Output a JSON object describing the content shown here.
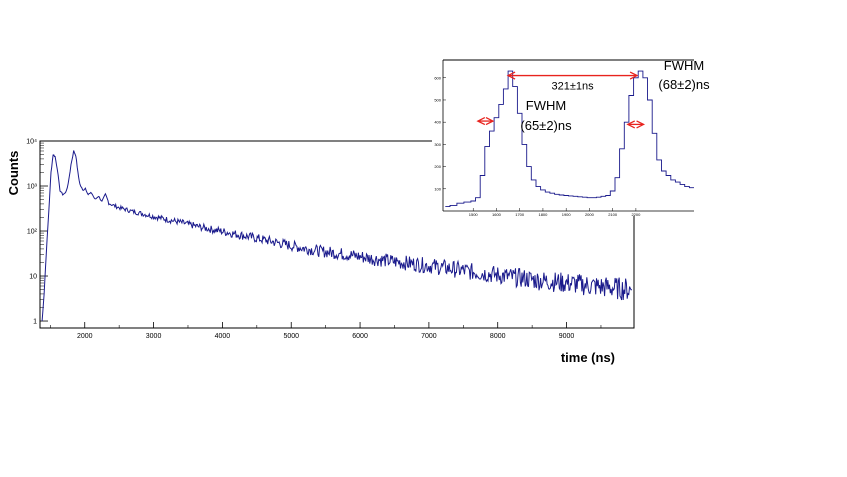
{
  "chart_data": [
    {
      "type": "line",
      "xlabel": "time (ns)",
      "ylabel": "Counts",
      "xlim": [
        1350,
        9980
      ],
      "ylim": [
        0.7,
        10000
      ],
      "yscale": "log",
      "xticks": [
        "2000",
        "3000",
        "4000",
        "5000",
        "6000",
        "7000",
        "8000",
        "9000"
      ],
      "xtick_values": [
        2000,
        3000,
        4000,
        5000,
        6000,
        7000,
        8000,
        9000
      ],
      "yticks": [
        "1",
        "10",
        "10²",
        "10³",
        "10⁴"
      ],
      "ytick_values": [
        1,
        10,
        100,
        1000,
        10000
      ],
      "grid": false,
      "color": "#1a1a8c",
      "series": [
        {
          "x": [
            1380,
            1410,
            1440,
            1480,
            1510,
            1540,
            1570,
            1600,
            1640,
            1680,
            1720,
            1760,
            1800,
            1840,
            1870,
            1900,
            1930,
            1970,
            2010,
            2050,
            2100,
            2150,
            2200,
            2250,
            2300,
            2350,
            2400,
            2500,
            2600,
            2700,
            2800,
            2900,
            3000,
            3200,
            3400,
            3600,
            3800,
            4000,
            4200,
            4400,
            4600,
            4800,
            5000,
            5200,
            5400,
            5600,
            5800,
            6000,
            6200,
            6400,
            6600,
            6800,
            7000,
            7200,
            7400,
            7600,
            7800,
            8000,
            8200,
            8400,
            8600,
            8800,
            9000,
            9200,
            9400,
            9600,
            9800,
            9950
          ],
          "y": [
            1,
            4,
            30,
            300,
            2000,
            5000,
            4500,
            2500,
            800,
            650,
            700,
            1100,
            3000,
            6000,
            4800,
            2000,
            1100,
            800,
            900,
            650,
            700,
            500,
            600,
            450,
            650,
            420,
            380,
            330,
            300,
            270,
            250,
            230,
            210,
            180,
            155,
            130,
            112,
            98,
            85,
            74,
            64,
            55,
            47,
            41,
            36,
            33,
            30,
            27,
            24,
            22,
            20,
            18.5,
            17,
            15.5,
            14,
            12.5,
            11.5,
            10.5,
            9.5,
            8.8,
            8,
            7.5,
            7,
            6.5,
            6,
            5.6,
            5.2,
            5
          ]
        }
      ]
    },
    {
      "type": "line",
      "xlim": [
        1370,
        2450
      ],
      "ylim": [
        0,
        680
      ],
      "xticks": [
        "1500",
        "1600",
        "1700",
        "1800",
        "1900",
        "2000",
        "2100",
        "2200"
      ],
      "xtick_values": [
        1500,
        1600,
        1700,
        1800,
        1900,
        2000,
        2100,
        2200
      ],
      "yticks": [
        "100",
        "200",
        "300",
        "400",
        "500",
        "600"
      ],
      "ytick_values": [
        100,
        200,
        300,
        400,
        500,
        600
      ],
      "color": "#1a1a8c",
      "series": [
        {
          "x": [
            1380,
            1400,
            1430,
            1460,
            1490,
            1510,
            1530,
            1550,
            1570,
            1590,
            1610,
            1630,
            1650,
            1670,
            1690,
            1710,
            1730,
            1750,
            1770,
            1790,
            1810,
            1830,
            1850,
            1870,
            1890,
            1910,
            1930,
            1950,
            1970,
            1990,
            2010,
            2030,
            2050,
            2070,
            2090,
            2110,
            2130,
            2150,
            2170,
            2190,
            2210,
            2230,
            2250,
            2270,
            2290,
            2310,
            2330,
            2350,
            2370,
            2390,
            2410,
            2430
          ],
          "y": [
            20,
            25,
            35,
            40,
            45,
            60,
            160,
            290,
            360,
            420,
            480,
            550,
            630,
            560,
            440,
            300,
            200,
            140,
            110,
            95,
            85,
            80,
            75,
            72,
            70,
            68,
            66,
            64,
            62,
            60,
            60,
            62,
            66,
            70,
            90,
            150,
            280,
            400,
            520,
            600,
            630,
            600,
            500,
            350,
            230,
            180,
            160,
            140,
            130,
            120,
            110,
            105
          ]
        }
      ],
      "annotations": [
        {
          "text": "321±1ns",
          "x1": 1650,
          "x2": 2205,
          "y": 610
        },
        {
          "text_lines": [
            "FWHM",
            "(65±2)ns"
          ],
          "x1": 1520,
          "x2": 1585,
          "y": 405
        },
        {
          "text_lines": [
            "FWHM",
            "(68±2)ns"
          ],
          "x1": 2165,
          "x2": 2233,
          "y": 390
        }
      ]
    }
  ]
}
